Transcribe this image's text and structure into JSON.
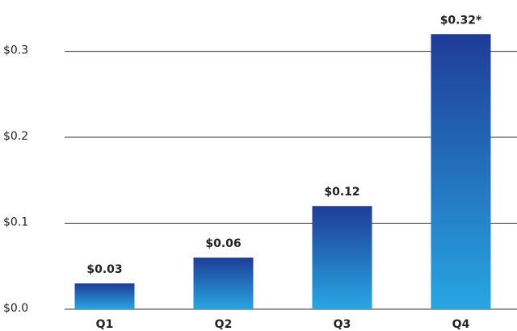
{
  "chart_data": {
    "type": "bar",
    "categories": [
      "Q1",
      "Q2",
      "Q3",
      "Q4"
    ],
    "values": [
      0.03,
      0.06,
      0.12,
      0.32
    ],
    "value_labels": [
      "$0.03",
      "$0.06",
      "$0.12",
      "$0.32*"
    ],
    "gradient": [
      "#1f3c98",
      "#27a6e2"
    ],
    "ylim": [
      0,
      0.355
    ],
    "yticks": [
      {
        "value": 0,
        "label": "$0.0"
      },
      {
        "value": 0.1,
        "label": "$0.1"
      },
      {
        "value": 0.2,
        "label": "$0.2"
      },
      {
        "value": 0.3,
        "label": "$0.3"
      }
    ],
    "grid": true
  }
}
